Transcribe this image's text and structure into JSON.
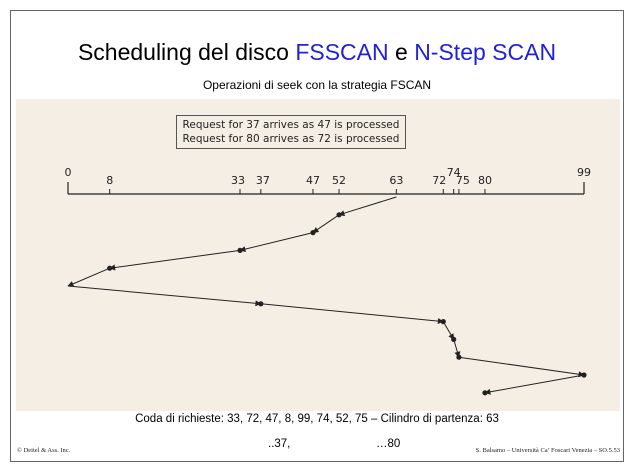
{
  "title": {
    "prefix": "Scheduling del disco ",
    "fsscan": "FSSCAN",
    "middle": " e ",
    "nstep": "N-Step SCAN"
  },
  "subtitle": "Operazioni di seek con la strategia  FSCAN",
  "note": {
    "line1": "Request for 37 arrives as 47 is processed",
    "line2": "Request for 80 arrives as 72 is processed"
  },
  "queue_text": "Coda di richieste: 33, 72, 47, 8, 99, 74, 52, 75 – Cilindro di partenza: 63",
  "arrivals": {
    "a37": "..37,",
    "a80": "…80"
  },
  "copyright": "© Deitel & Ass. Inc.",
  "footer": "S. Balsamo – Università Ca’ Foscari Venezia – SO.5.53",
  "colors": {
    "accent": "#1f1fe0",
    "figure_bg": "#f5eee4",
    "ink": "#222222"
  },
  "chart_data": {
    "type": "line",
    "axis": {
      "min": 0,
      "max": 99
    },
    "ticks": [
      0,
      8,
      33,
      37,
      47,
      52,
      63,
      72,
      74,
      75,
      80,
      99
    ],
    "seek_sequence": [
      63,
      52,
      47,
      33,
      8,
      0,
      37,
      72,
      74,
      75,
      99,
      80
    ]
  }
}
